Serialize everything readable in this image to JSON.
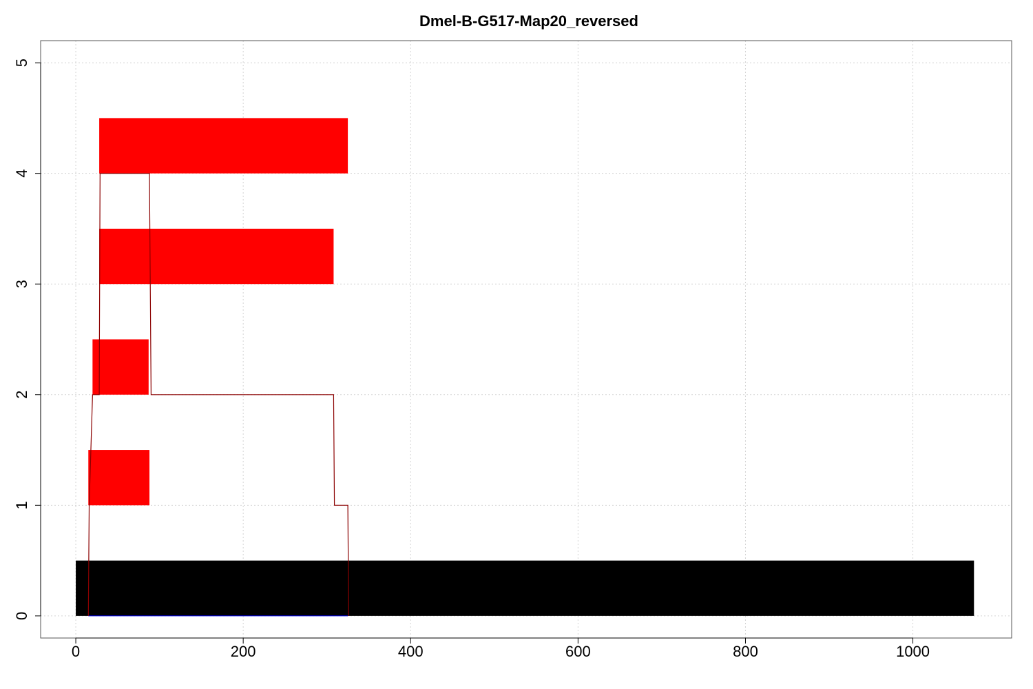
{
  "chart_data": {
    "type": "bar",
    "title": "Dmel-B-G517-Map20_reversed",
    "xlabel": "",
    "ylabel": "",
    "xlim": [
      -42,
      1118
    ],
    "ylim": [
      -0.2,
      5.2
    ],
    "x_ticks": [
      0,
      200,
      400,
      600,
      800,
      1000
    ],
    "y_ticks": [
      0,
      1,
      2,
      3,
      4,
      5
    ],
    "grid": true,
    "reference_bar": {
      "x_start": 0,
      "x_end": 1073,
      "y_bottom": 0,
      "y_top": 0.5,
      "color": "#000000"
    },
    "segments": [
      {
        "level": 1,
        "x_start": 15,
        "x_end": 88,
        "color": "#ff0000"
      },
      {
        "level": 2,
        "x_start": 20,
        "x_end": 87,
        "color": "#ff0000"
      },
      {
        "level": 3,
        "x_start": 28,
        "x_end": 308,
        "color": "#ff0000"
      },
      {
        "level": 4,
        "x_start": 28,
        "x_end": 325,
        "color": "#ff0000"
      }
    ],
    "segment_height": 0.5,
    "coverage_line": {
      "color": "#8b0000",
      "x": [
        15,
        16,
        20,
        21,
        28,
        29,
        87,
        88,
        90,
        308,
        309,
        324,
        325,
        326
      ],
      "y": [
        0,
        1,
        2,
        2,
        2,
        4,
        4,
        4,
        2,
        2,
        1,
        1,
        1,
        0
      ]
    },
    "baseline_line": {
      "color": "#0000ff",
      "x_start": 15,
      "x_end": 325,
      "y": 0
    }
  }
}
